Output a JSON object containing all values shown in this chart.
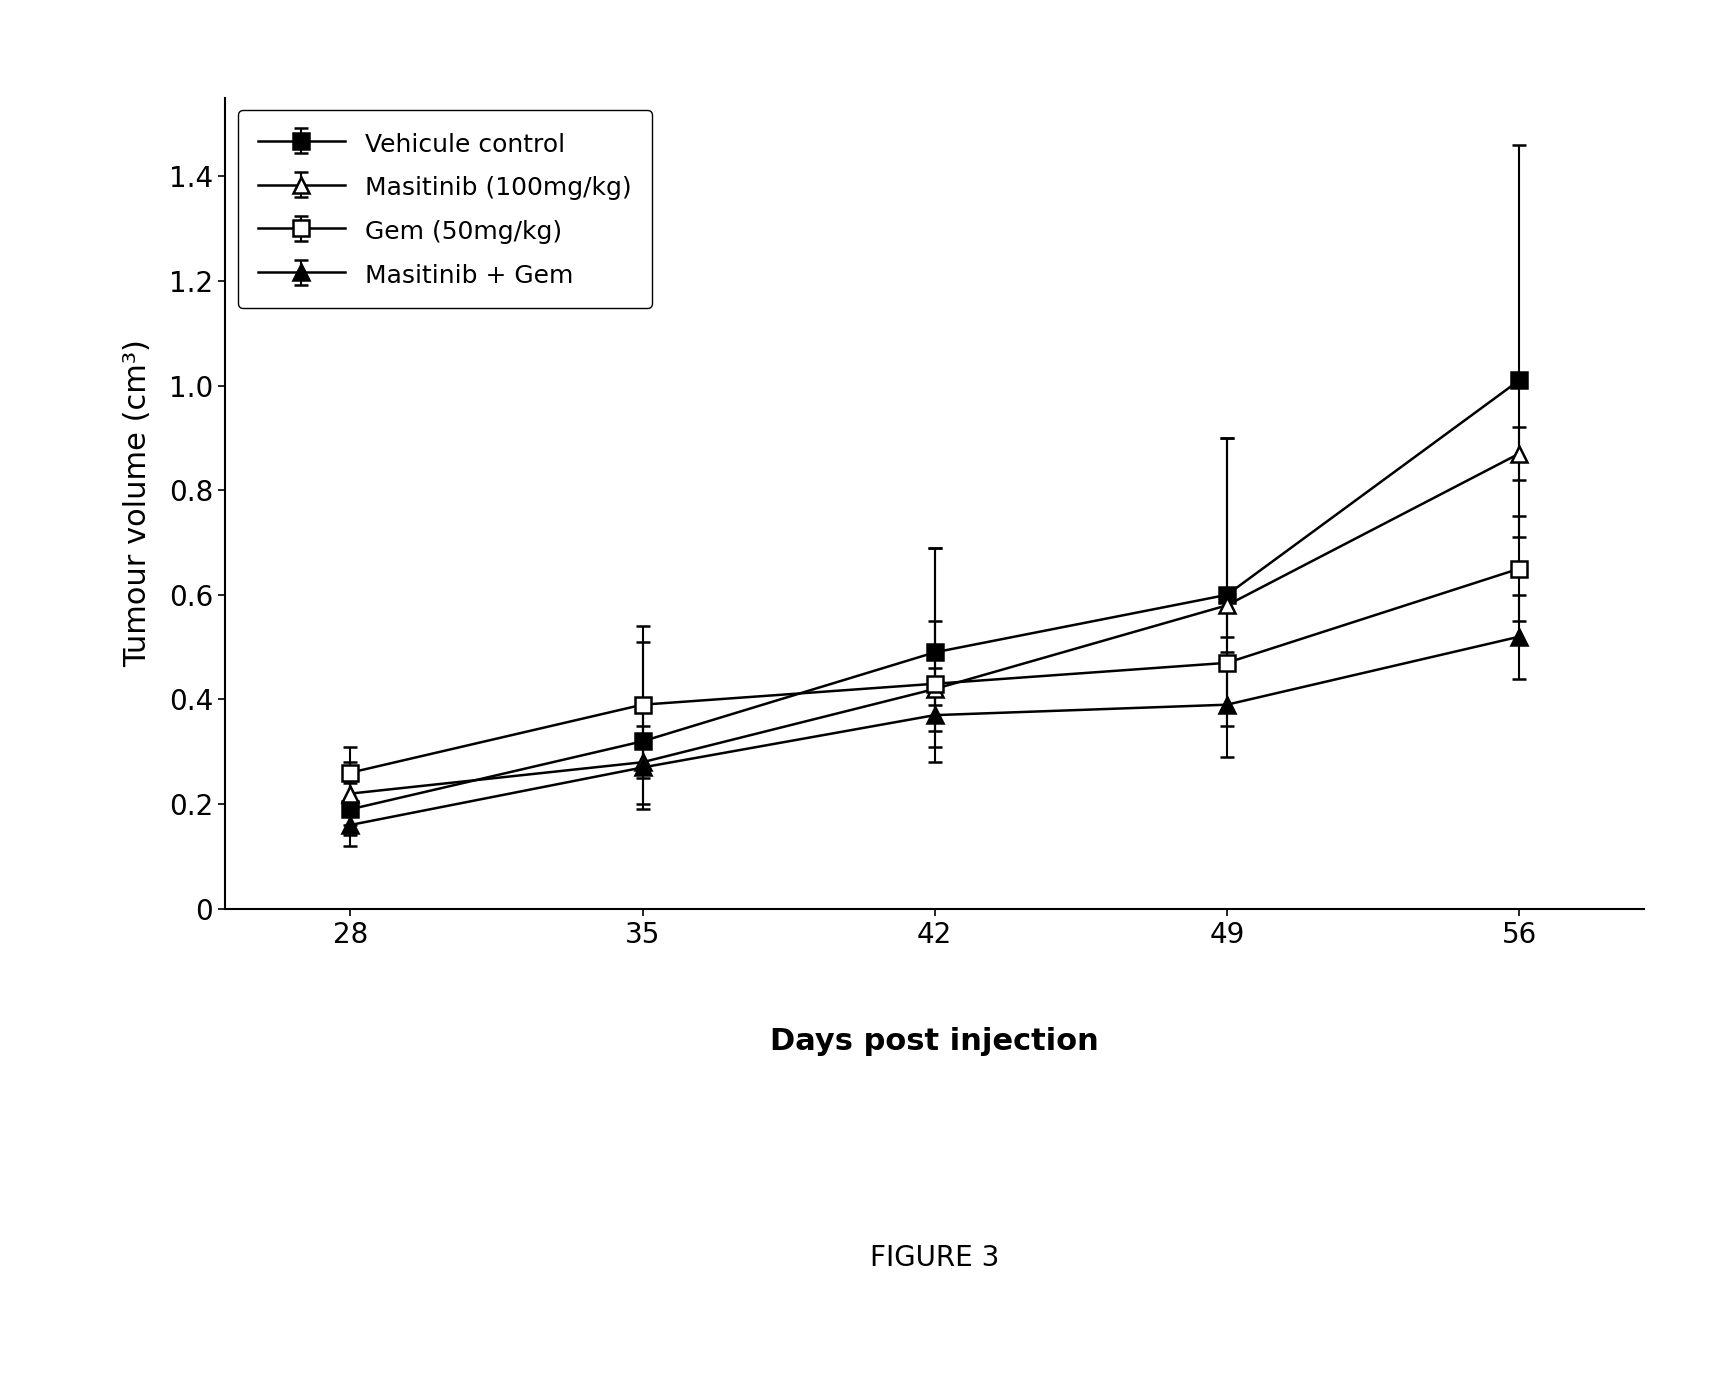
{
  "x": [
    28,
    35,
    42,
    49,
    56
  ],
  "series": [
    {
      "label": "Vehicule control",
      "y": [
        0.19,
        0.32,
        0.49,
        0.6,
        1.01
      ],
      "yerr_low": [
        0.05,
        0.07,
        0.1,
        0.08,
        0.3
      ],
      "yerr_high": [
        0.05,
        0.22,
        0.2,
        0.3,
        0.45
      ],
      "marker": "s",
      "marker_fill": "#000000",
      "marker_edge": "#000000",
      "line_color": "#000000",
      "markersize": 11,
      "fillstyle": "full"
    },
    {
      "label": "Masitinib (100mg/kg)",
      "y": [
        0.22,
        0.28,
        0.42,
        0.58,
        0.87
      ],
      "yerr_low": [
        0.06,
        0.08,
        0.08,
        0.2,
        0.05
      ],
      "yerr_high": [
        0.06,
        0.1,
        0.27,
        0.32,
        0.05
      ],
      "marker": "^",
      "marker_fill": "#ffffff",
      "marker_edge": "#000000",
      "line_color": "#000000",
      "markersize": 11,
      "fillstyle": "none"
    },
    {
      "label": "Gem (50mg/kg)",
      "y": [
        0.26,
        0.39,
        0.43,
        0.47,
        0.65
      ],
      "yerr_low": [
        0.05,
        0.12,
        0.12,
        0.12,
        0.1
      ],
      "yerr_high": [
        0.05,
        0.12,
        0.12,
        0.12,
        0.1
      ],
      "marker": "s",
      "marker_fill": "#ffffff",
      "marker_edge": "#000000",
      "line_color": "#000000",
      "markersize": 11,
      "fillstyle": "none"
    },
    {
      "label": "Masitinib + Gem",
      "y": [
        0.16,
        0.27,
        0.37,
        0.39,
        0.52
      ],
      "yerr_low": [
        0.04,
        0.08,
        0.09,
        0.1,
        0.08
      ],
      "yerr_high": [
        0.04,
        0.08,
        0.09,
        0.1,
        0.08
      ],
      "marker": "^",
      "marker_fill": "#000000",
      "marker_edge": "#000000",
      "line_color": "#000000",
      "markersize": 11,
      "fillstyle": "full"
    }
  ],
  "xlabel": "Days post injection",
  "ylabel": "Tumour volume (cm³)",
  "xticks": [
    28,
    35,
    42,
    49,
    56
  ],
  "yticks": [
    0,
    0.2,
    0.4,
    0.6,
    0.8,
    1.0,
    1.2,
    1.4
  ],
  "ylim": [
    0,
    1.55
  ],
  "xlim": [
    25,
    59
  ],
  "figure_caption": "FIGURE 3",
  "label_fontsize": 22,
  "tick_fontsize": 20,
  "legend_fontsize": 18,
  "caption_fontsize": 20,
  "background_color": "#ffffff",
  "line_width": 1.8
}
